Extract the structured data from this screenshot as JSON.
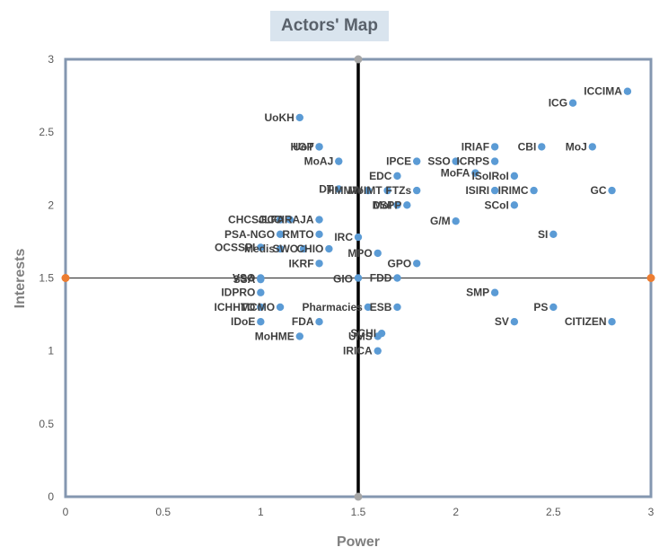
{
  "chart_data": {
    "type": "scatter",
    "title": "Actors' Map",
    "xlabel": "Power",
    "ylabel": "Interests",
    "xlim": [
      0,
      3
    ],
    "ylim": [
      0,
      3
    ],
    "xticks": [
      "0",
      "0.5",
      "1",
      "1.5",
      "2",
      "2.5",
      "3"
    ],
    "yticks": [
      "0",
      "0.5",
      "1",
      "1.5",
      "2",
      "2.5",
      "3"
    ],
    "grid": false,
    "quadrant_lines": {
      "x": 1.5,
      "y": 1.5
    },
    "colors": {
      "points": "#5b9bd5",
      "frame": "#8497b0",
      "h_line_marker": "#ed7d31",
      "v_line_marker": "#a6a6a6",
      "title_bg": "#d9e4ee"
    },
    "points": [
      {
        "label": "ICCIMA",
        "x": 2.88,
        "y": 2.78
      },
      {
        "label": "ICG",
        "x": 2.6,
        "y": 2.7
      },
      {
        "label": "UoKH",
        "x": 1.2,
        "y": 2.6
      },
      {
        "label": "UoT",
        "x": 1.3,
        "y": 2.4
      },
      {
        "label": "HGP",
        "x": 1.3,
        "y": 2.4
      },
      {
        "label": "MoAJ",
        "x": 1.4,
        "y": 2.3
      },
      {
        "label": "IPCE",
        "x": 1.8,
        "y": 2.3
      },
      {
        "label": "SSO",
        "x": 2.0,
        "y": 2.3
      },
      {
        "label": "IRIAF",
        "x": 2.2,
        "y": 2.4
      },
      {
        "label": "CBI",
        "x": 2.44,
        "y": 2.4
      },
      {
        "label": "MoJ",
        "x": 2.7,
        "y": 2.4
      },
      {
        "label": "ICRPS",
        "x": 2.2,
        "y": 2.3
      },
      {
        "label": "EDC",
        "x": 1.7,
        "y": 2.2
      },
      {
        "label": "MoFA",
        "x": 2.1,
        "y": 2.22
      },
      {
        "label": "ISoIRoI",
        "x": 2.3,
        "y": 2.2
      },
      {
        "label": "DT",
        "x": 1.4,
        "y": 2.11
      },
      {
        "label": "HMMW",
        "x": 1.55,
        "y": 2.1
      },
      {
        "label": "MoIMT",
        "x": 1.65,
        "y": 2.1
      },
      {
        "label": "FTZs",
        "x": 1.8,
        "y": 2.1
      },
      {
        "label": "ISIRI",
        "x": 2.2,
        "y": 2.1
      },
      {
        "label": "IRIMC",
        "x": 2.4,
        "y": 2.1
      },
      {
        "label": "GC",
        "x": 2.8,
        "y": 2.1
      },
      {
        "label": "MoI",
        "x": 1.7,
        "y": 2.0
      },
      {
        "label": "DSPP",
        "x": 1.75,
        "y": 2.0
      },
      {
        "label": "SCoI",
        "x": 2.3,
        "y": 2.0
      },
      {
        "label": "CHCSGC",
        "x": 1.1,
        "y": 1.9
      },
      {
        "label": "JLICI",
        "x": 1.15,
        "y": 1.9
      },
      {
        "label": "FARAJA",
        "x": 1.3,
        "y": 1.9
      },
      {
        "label": "G/M",
        "x": 2.0,
        "y": 1.89
      },
      {
        "label": "PSA-NGO",
        "x": 1.1,
        "y": 1.8
      },
      {
        "label": "RMTO",
        "x": 1.3,
        "y": 1.8
      },
      {
        "label": "IRC",
        "x": 1.5,
        "y": 1.78
      },
      {
        "label": "SI",
        "x": 2.5,
        "y": 1.8
      },
      {
        "label": "OCSSPI",
        "x": 1.0,
        "y": 1.71
      },
      {
        "label": "Medis",
        "x": 1.1,
        "y": 1.7
      },
      {
        "label": "SWO",
        "x": 1.22,
        "y": 1.7
      },
      {
        "label": "CHIO",
        "x": 1.35,
        "y": 1.7
      },
      {
        "label": "MPO",
        "x": 1.6,
        "y": 1.67
      },
      {
        "label": "IKRF",
        "x": 1.3,
        "y": 1.6
      },
      {
        "label": "GPO",
        "x": 1.8,
        "y": 1.6
      },
      {
        "label": "VSO",
        "x": 1.0,
        "y": 1.5
      },
      {
        "label": "SSA",
        "x": 1.0,
        "y": 1.49
      },
      {
        "label": "GIO",
        "x": 1.5,
        "y": 1.5
      },
      {
        "label": "FDD",
        "x": 1.7,
        "y": 1.5
      },
      {
        "label": "IDPRO",
        "x": 1.0,
        "y": 1.4
      },
      {
        "label": "SMP",
        "x": 2.2,
        "y": 1.4
      },
      {
        "label": "ICHHTO",
        "x": 1.0,
        "y": 1.3
      },
      {
        "label": "MCMO",
        "x": 1.1,
        "y": 1.3
      },
      {
        "label": "Pharmacies",
        "x": 1.55,
        "y": 1.3
      },
      {
        "label": "ESB",
        "x": 1.7,
        "y": 1.3
      },
      {
        "label": "PS",
        "x": 2.5,
        "y": 1.3
      },
      {
        "label": "IDoE",
        "x": 1.0,
        "y": 1.2
      },
      {
        "label": "FDA",
        "x": 1.3,
        "y": 1.2
      },
      {
        "label": "SV",
        "x": 2.3,
        "y": 1.2
      },
      {
        "label": "CITIZEN",
        "x": 2.8,
        "y": 1.2
      },
      {
        "label": "SCHI",
        "x": 1.62,
        "y": 1.12
      },
      {
        "label": "MoHME",
        "x": 1.2,
        "y": 1.1
      },
      {
        "label": "UMS",
        "x": 1.6,
        "y": 1.1
      },
      {
        "label": "IRICA",
        "x": 1.6,
        "y": 1.0
      }
    ]
  }
}
